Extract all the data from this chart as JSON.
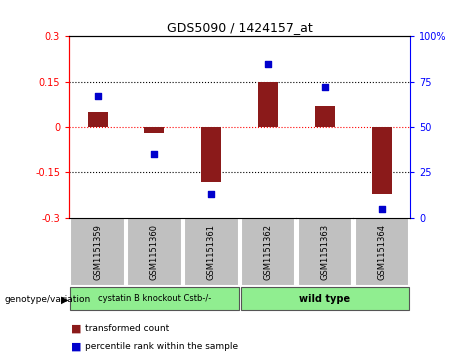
{
  "title": "GDS5090 / 1424157_at",
  "samples": [
    "GSM1151359",
    "GSM1151360",
    "GSM1151361",
    "GSM1151362",
    "GSM1151363",
    "GSM1151364"
  ],
  "red_bars": [
    0.05,
    -0.02,
    -0.18,
    0.15,
    0.07,
    -0.22
  ],
  "blue_dots_pct": [
    67,
    35,
    13,
    85,
    72,
    5
  ],
  "ylim": [
    -0.3,
    0.3
  ],
  "yticks_left": [
    -0.3,
    -0.15,
    0.0,
    0.15,
    0.3
  ],
  "ytick_left_labels": [
    "-0.3",
    "-0.15",
    "0",
    "0.15",
    "0.3"
  ],
  "yticks_right_pct": [
    0,
    25,
    50,
    75,
    100
  ],
  "ytick_right_labels": [
    "0",
    "25",
    "50",
    "75",
    "100%"
  ],
  "bar_color": "#8B1A1A",
  "dot_color": "#0000CC",
  "bar_width": 0.35,
  "legend_red_label": "transformed count",
  "legend_blue_label": "percentile rank within the sample",
  "genotype_label": "genotype/variation",
  "sample_box_color": "#C0C0C0",
  "group1_label": "cystatin B knockout Cstb-/-",
  "group2_label": "wild type",
  "group_color": "#90EE90"
}
